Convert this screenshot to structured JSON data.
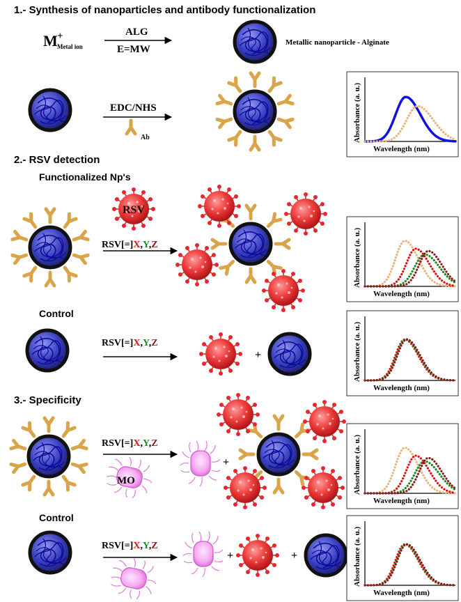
{
  "sections": {
    "s1": "1.- Synthesis of nanoparticles and antibody functionalization",
    "s2": "2.- RSV detection",
    "s3": "3.- Specificity"
  },
  "labels": {
    "metal_symbol": "M",
    "metal_plus": "+",
    "metal_ion": "Metal ion",
    "alg": "ALG",
    "mw": "E=MW",
    "np_alginate": "Metallic nanoparticle  - Alginate",
    "edc": "EDC/NHS",
    "ab": "Ab",
    "functionalized": "Functionalized Np's",
    "rsv_tag": "RSV",
    "control": "Control",
    "mo": "MO",
    "plus": "+"
  },
  "reaction": {
    "prefix": "RSV[=]",
    "x": "X",
    "y": "Y",
    "z": "Z",
    "comma": ","
  },
  "plot_labels": {
    "ylabel": "Absorbance (a. u.)",
    "xlabel": "Wavelength (nm)"
  },
  "colors": {
    "np_core": "#3a3fc0",
    "np_rim": "#1a1a1a",
    "np_fiber": "#1010a0",
    "antibody": "#d9a44a",
    "virus": "#e8262c",
    "bacteria": "#f28ef0",
    "x_red": "#e01010",
    "y_green": "#1e8a1e",
    "z_darkred": "#8b1a1a",
    "curve_blue": "#1010e0",
    "curve_tan": "#e7b57a"
  },
  "chart_data": [
    {
      "type": "line",
      "panel": "1",
      "xlabel": "Wavelength (nm)",
      "ylabel": "Absorbance (a. u.)",
      "series": [
        {
          "color": "#1010e0",
          "style": "solid",
          "peak": 0.45,
          "width": 0.13,
          "height": 0.78
        },
        {
          "color": "#e7b57a",
          "style": "dotted",
          "peak": 0.58,
          "width": 0.14,
          "height": 0.62
        }
      ]
    },
    {
      "type": "line",
      "panel": "2",
      "xlabel": "Wavelength (nm)",
      "ylabel": "Absorbance (a. u.)",
      "series": [
        {
          "color": "#e7b57a",
          "style": "dotted",
          "peak": 0.44,
          "width": 0.12,
          "height": 0.8
        },
        {
          "color": "#e01010",
          "style": "dotted",
          "peak": 0.56,
          "width": 0.12,
          "height": 0.66
        },
        {
          "color": "#1e8a1e",
          "style": "dotted",
          "peak": 0.66,
          "width": 0.13,
          "height": 0.56
        },
        {
          "color": "#8b1a1a",
          "style": "dotted",
          "peak": 0.7,
          "width": 0.12,
          "height": 0.62
        }
      ]
    },
    {
      "type": "line",
      "panel": "3",
      "xlabel": "Wavelength (nm)",
      "ylabel": "Absorbance (a. u.)",
      "series": [
        {
          "color": "#e01010",
          "style": "dotted",
          "peak": 0.44,
          "width": 0.12,
          "height": 0.72
        },
        {
          "color": "#1e8a1e",
          "style": "dotted",
          "peak": 0.45,
          "width": 0.12,
          "height": 0.72
        },
        {
          "color": "#8b1a1a",
          "style": "dotted",
          "peak": 0.46,
          "width": 0.12,
          "height": 0.72
        }
      ]
    },
    {
      "type": "line",
      "panel": "4",
      "xlabel": "Wavelength (nm)",
      "ylabel": "Absorbance (a. u.)",
      "series": [
        {
          "color": "#e7b57a",
          "style": "dotted",
          "peak": 0.44,
          "width": 0.12,
          "height": 0.8
        },
        {
          "color": "#e01010",
          "style": "dotted",
          "peak": 0.56,
          "width": 0.12,
          "height": 0.66
        },
        {
          "color": "#1e8a1e",
          "style": "dotted",
          "peak": 0.66,
          "width": 0.13,
          "height": 0.56
        },
        {
          "color": "#8b1a1a",
          "style": "dotted",
          "peak": 0.7,
          "width": 0.12,
          "height": 0.62
        }
      ]
    },
    {
      "type": "line",
      "panel": "5",
      "xlabel": "Wavelength (nm)",
      "ylabel": "Absorbance (a. u.)",
      "series": [
        {
          "color": "#e01010",
          "style": "dotted",
          "peak": 0.44,
          "width": 0.12,
          "height": 0.72
        },
        {
          "color": "#1e8a1e",
          "style": "dotted",
          "peak": 0.45,
          "width": 0.12,
          "height": 0.72
        },
        {
          "color": "#8b1a1a",
          "style": "dotted",
          "peak": 0.46,
          "width": 0.12,
          "height": 0.72
        }
      ]
    }
  ]
}
